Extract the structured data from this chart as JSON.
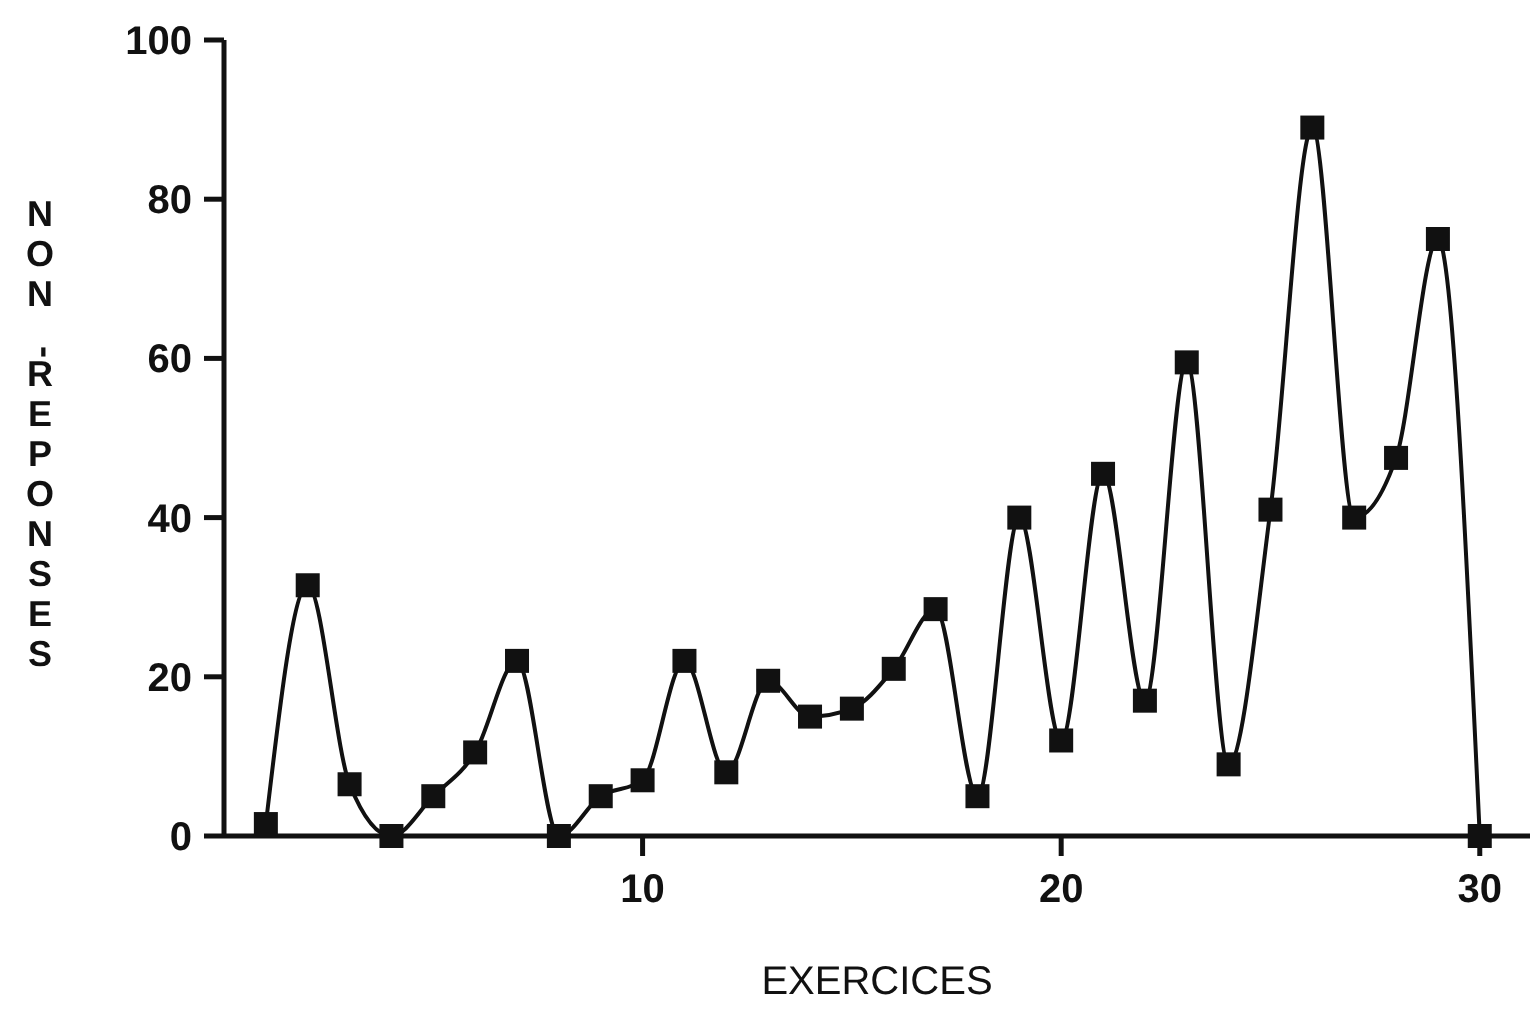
{
  "chart_data": {
    "type": "line",
    "xlabel": "EXERCICES",
    "ylabel": "NON-REPONSES",
    "x": [
      1,
      2,
      3,
      4,
      5,
      6,
      7,
      8,
      9,
      10,
      11,
      12,
      13,
      14,
      15,
      16,
      17,
      18,
      19,
      20,
      21,
      22,
      23,
      24,
      25,
      26,
      27,
      28,
      29,
      30
    ],
    "series": [
      {
        "color": "#111111",
        "values": [
          1.5,
          31.5,
          6.5,
          0,
          5,
          10.5,
          22,
          0,
          5,
          7,
          22,
          8,
          19.5,
          15,
          16,
          21,
          28.5,
          5,
          40,
          12,
          45.5,
          17,
          59.5,
          9,
          41,
          89,
          40,
          47.5,
          75,
          0
        ]
      }
    ],
    "xlim": [
      0,
      31.2
    ],
    "xticks": [
      10,
      20,
      30
    ],
    "ylim": [
      0,
      100
    ],
    "yticks": [
      0,
      20,
      40,
      60,
      80,
      100
    ],
    "marker": "square",
    "line_style": "solid",
    "grid": false
  }
}
